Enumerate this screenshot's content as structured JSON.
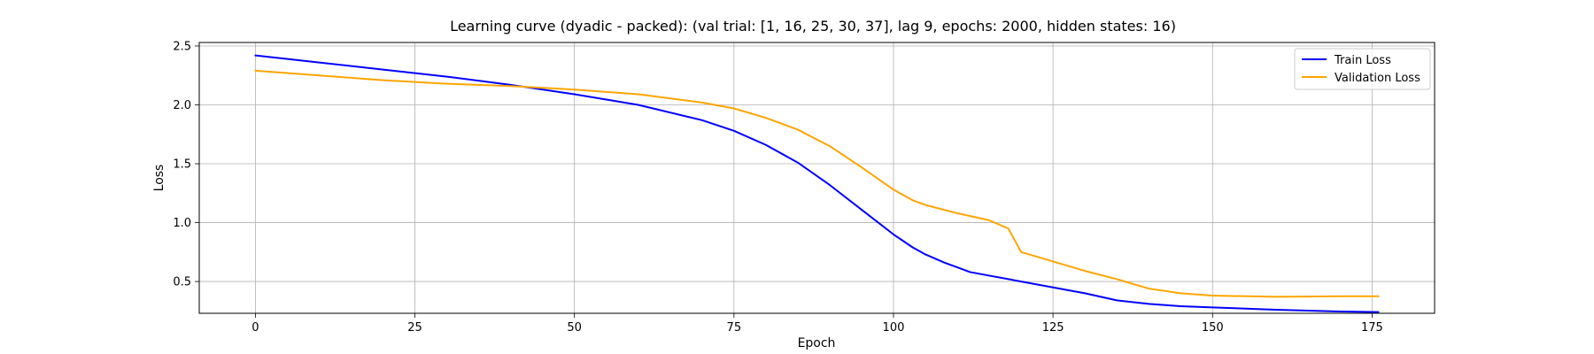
{
  "chart_data": {
    "type": "line",
    "title": "Learning curve (dyadic - packed): (val trial: [1, 16, 25, 30, 37], lag 9, epochs: 2000, hidden states: 16)",
    "xlabel": "Epoch",
    "ylabel": "Loss",
    "xlim": [
      -8.8,
      184.8
    ],
    "ylim": [
      0.23,
      2.53
    ],
    "xticks": [
      0,
      25,
      50,
      75,
      100,
      125,
      150,
      175
    ],
    "yticks": [
      0.5,
      1.0,
      1.5,
      2.0,
      2.5
    ],
    "xtick_labels": [
      "0",
      "25",
      "50",
      "75",
      "100",
      "125",
      "150",
      "175"
    ],
    "ytick_labels": [
      "0.5",
      "1.0",
      "1.5",
      "2.0",
      "2.5"
    ],
    "grid": true,
    "legend_position": "top-right",
    "series": [
      {
        "name": "Train Loss",
        "color": "#0000ff",
        "x": [
          0,
          10,
          20,
          30,
          40,
          50,
          60,
          70,
          75,
          80,
          85,
          90,
          95,
          100,
          103,
          105,
          108,
          110,
          112,
          115,
          118,
          120,
          125,
          130,
          135,
          140,
          145,
          150,
          160,
          170,
          176
        ],
        "y": [
          2.42,
          2.36,
          2.3,
          2.24,
          2.17,
          2.09,
          2.0,
          1.87,
          1.78,
          1.66,
          1.51,
          1.32,
          1.11,
          0.9,
          0.79,
          0.73,
          0.66,
          0.62,
          0.58,
          0.55,
          0.52,
          0.5,
          0.45,
          0.4,
          0.34,
          0.31,
          0.29,
          0.28,
          0.26,
          0.245,
          0.24
        ]
      },
      {
        "name": "Validation Loss",
        "color": "#ffa500",
        "x": [
          0,
          10,
          20,
          30,
          40,
          50,
          60,
          70,
          75,
          80,
          85,
          90,
          95,
          100,
          103,
          105,
          110,
          115,
          118,
          120,
          125,
          130,
          135,
          140,
          145,
          150,
          160,
          170,
          176
        ],
        "y": [
          2.29,
          2.25,
          2.21,
          2.18,
          2.16,
          2.13,
          2.09,
          2.02,
          1.97,
          1.89,
          1.79,
          1.65,
          1.47,
          1.28,
          1.19,
          1.15,
          1.08,
          1.02,
          0.95,
          0.75,
          0.67,
          0.59,
          0.52,
          0.44,
          0.4,
          0.38,
          0.37,
          0.375,
          0.375
        ]
      }
    ]
  }
}
